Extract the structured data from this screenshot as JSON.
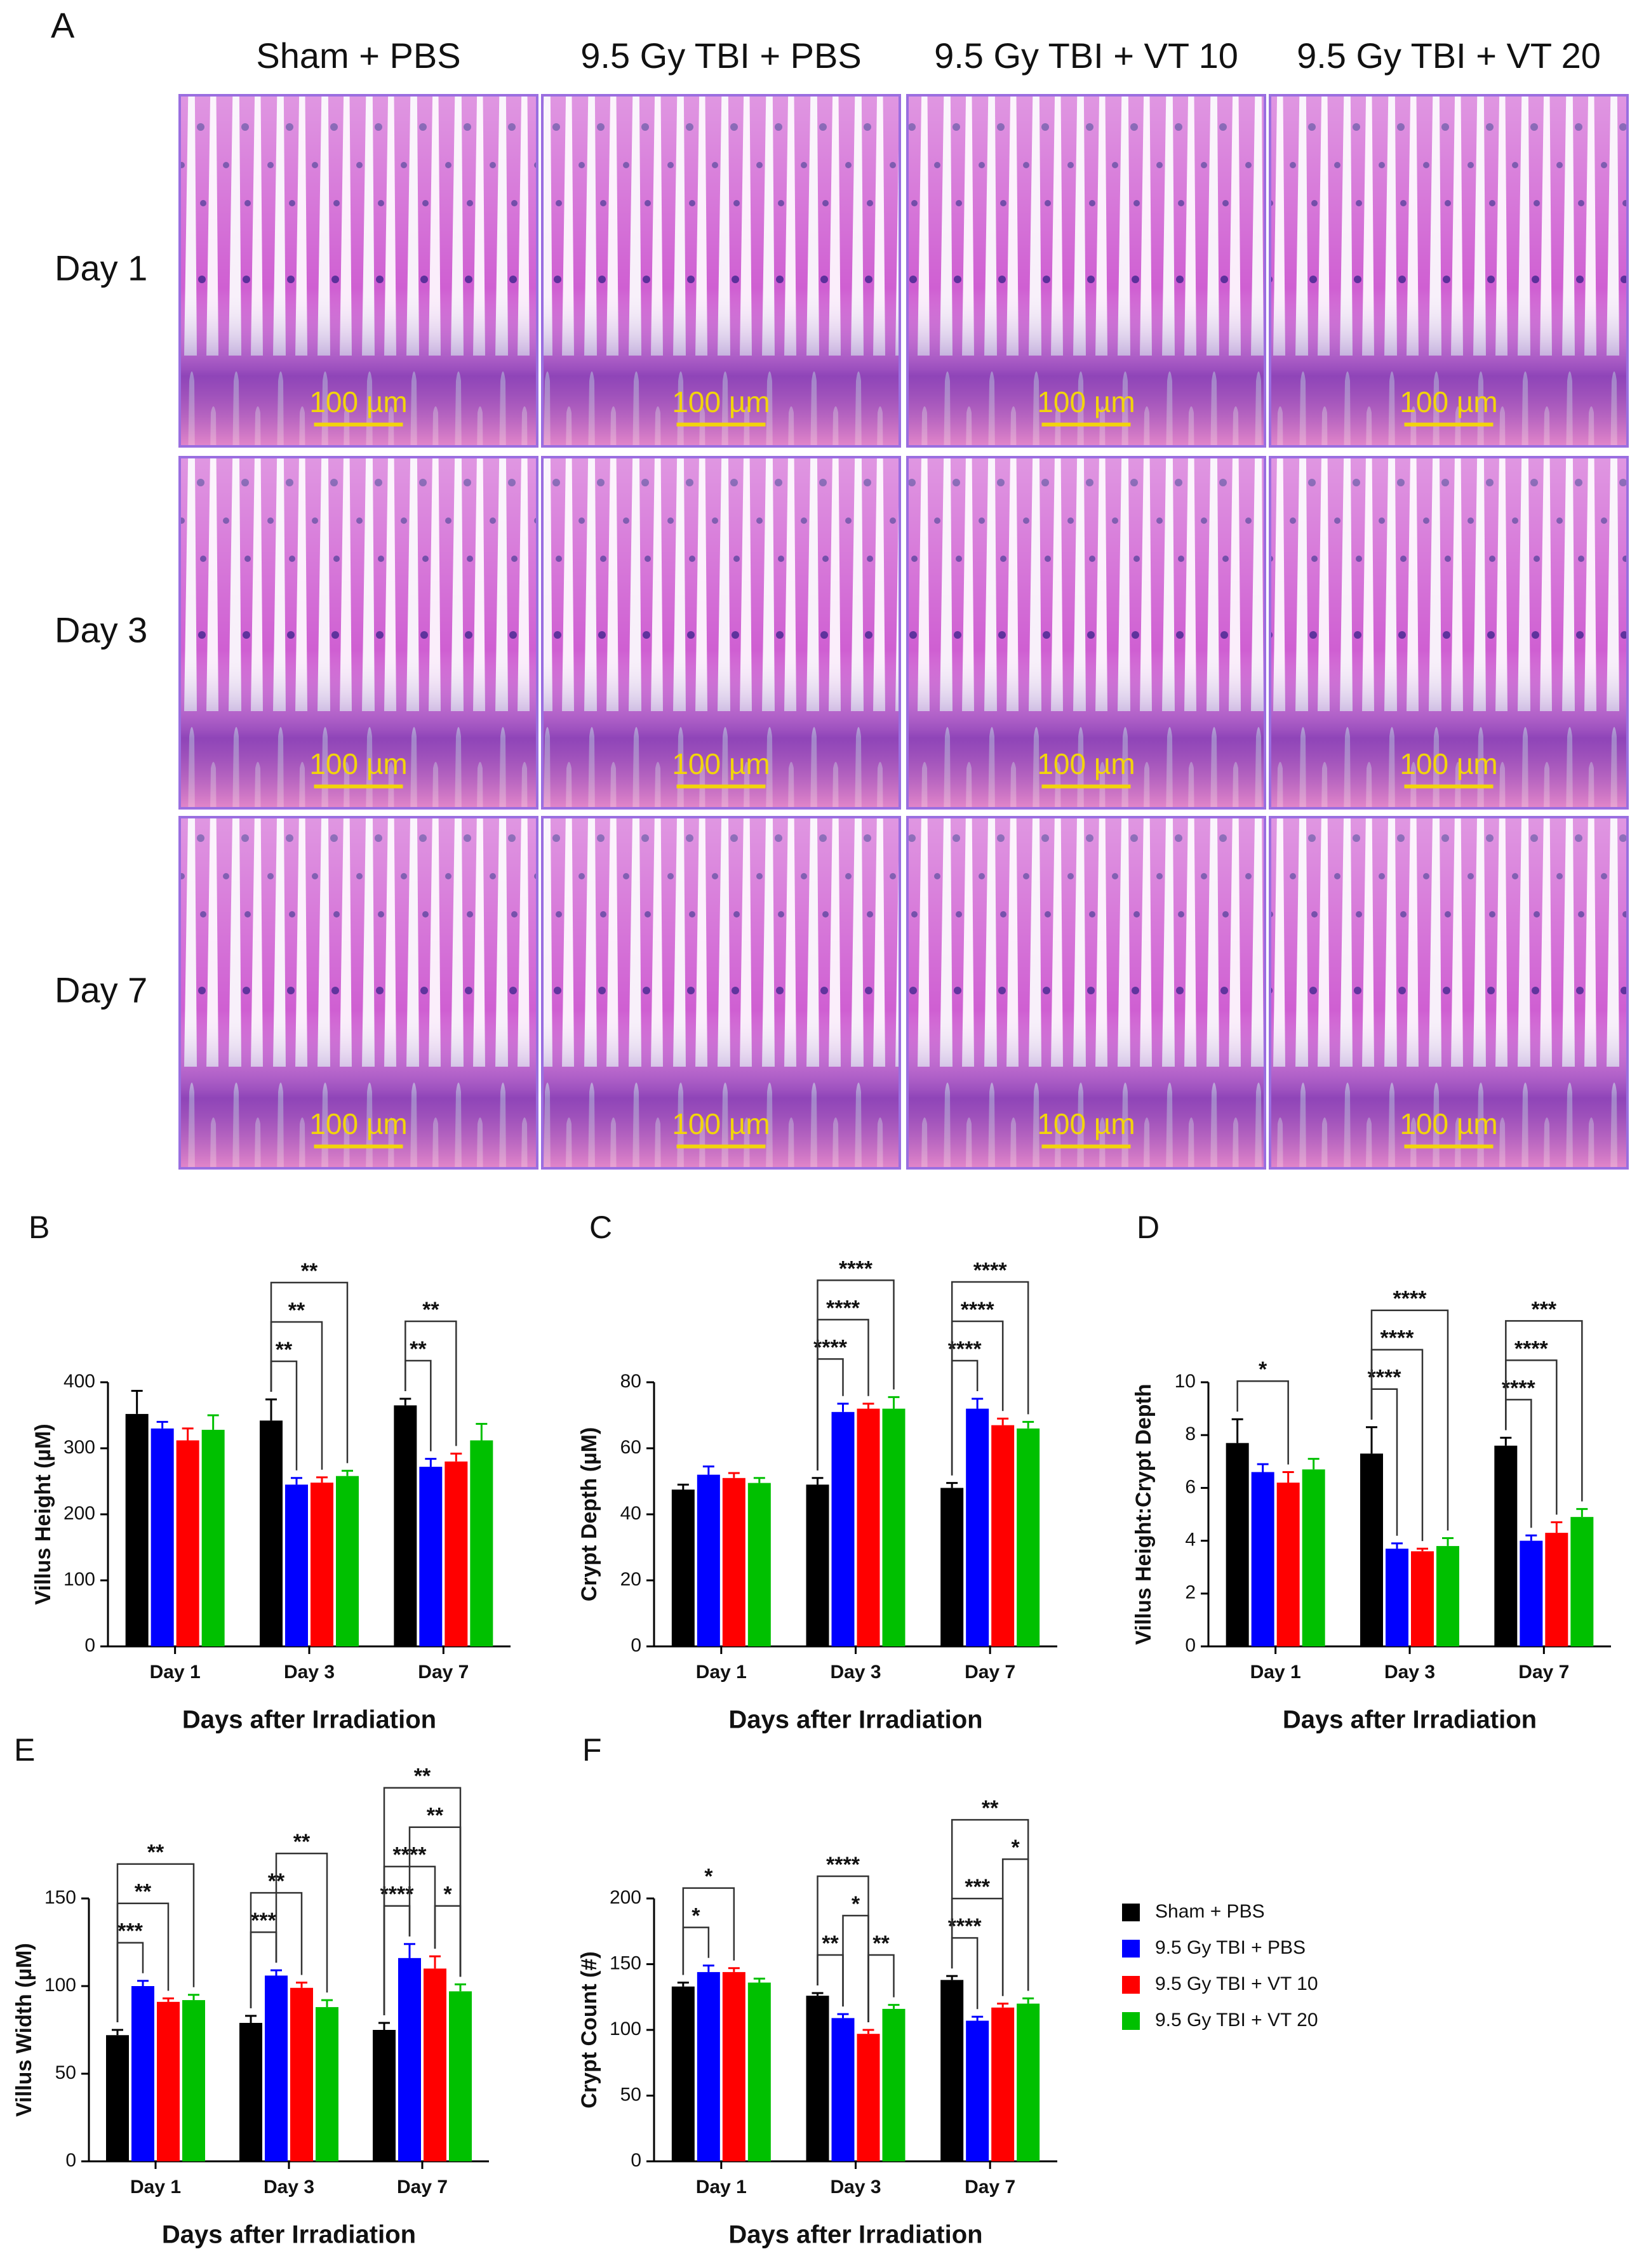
{
  "panel_a": {
    "label": "A",
    "columns": [
      "Sham + PBS",
      "9.5 Gy TBI + PBS",
      "9.5 Gy TBI + VT 10",
      "9.5 Gy TBI + VT 20"
    ],
    "rows": [
      "Day 1",
      "Day 3",
      "Day 7"
    ],
    "scale_bar_labels": [
      "100 µm",
      "100 µm",
      "100 µm",
      "100 µm",
      "100 µm",
      "100 µm",
      "100 µm",
      "100 µm",
      "100 µm",
      "100 µm",
      "100 µm",
      "100 µm"
    ]
  },
  "chart_data": [
    {
      "type": "bar",
      "panel": "B",
      "ylabel": "Villus Height (µM)",
      "xlabel": "Days after Irradiation",
      "categories": [
        "Day 1",
        "Day 3",
        "Day 7"
      ],
      "series": [
        {
          "name": "Sham + PBS",
          "color": "#000000",
          "values": [
            352,
            342,
            365
          ],
          "errors": [
            35,
            32,
            10
          ]
        },
        {
          "name": "9.5 Gy TBI + PBS",
          "color": "#0000ff",
          "values": [
            330,
            245,
            272
          ],
          "errors": [
            10,
            10,
            12
          ]
        },
        {
          "name": "9.5 Gy TBI + VT 10",
          "color": "#ff0000",
          "values": [
            312,
            248,
            280
          ],
          "errors": [
            18,
            8,
            12
          ]
        },
        {
          "name": "9.5 Gy TBI + VT 20",
          "color": "#00c000",
          "values": [
            328,
            258,
            312
          ],
          "errors": [
            22,
            8,
            25
          ]
        }
      ],
      "ylim": [
        0,
        400
      ],
      "yticks": [
        0,
        100,
        200,
        300,
        400
      ],
      "comparisons": [
        {
          "group": 1,
          "from": 0,
          "to": 1,
          "label": "**"
        },
        {
          "group": 1,
          "from": 0,
          "to": 2,
          "label": "**"
        },
        {
          "group": 1,
          "from": 0,
          "to": 3,
          "label": "**"
        },
        {
          "group": 2,
          "from": 0,
          "to": 1,
          "label": "**"
        },
        {
          "group": 2,
          "from": 0,
          "to": 2,
          "label": "**"
        }
      ]
    },
    {
      "type": "bar",
      "panel": "C",
      "ylabel": "Crypt Depth (µM)",
      "xlabel": "Days after Irradiation",
      "categories": [
        "Day 1",
        "Day 3",
        "Day 7"
      ],
      "series": [
        {
          "name": "Sham + PBS",
          "color": "#000000",
          "values": [
            47.5,
            49,
            48
          ],
          "errors": [
            1.5,
            2,
            1.5
          ]
        },
        {
          "name": "9.5 Gy TBI + PBS",
          "color": "#0000ff",
          "values": [
            52,
            71,
            72
          ],
          "errors": [
            2.5,
            2.5,
            3
          ]
        },
        {
          "name": "9.5 Gy TBI + VT 10",
          "color": "#ff0000",
          "values": [
            51,
            72,
            67
          ],
          "errors": [
            1.5,
            1.5,
            2
          ]
        },
        {
          "name": "9.5 Gy TBI + VT 20",
          "color": "#00c000",
          "values": [
            49.5,
            72,
            66
          ],
          "errors": [
            1.5,
            3.5,
            2
          ]
        }
      ],
      "ylim": [
        0,
        80
      ],
      "yticks": [
        0,
        20,
        40,
        60,
        80
      ],
      "comparisons": [
        {
          "group": 1,
          "from": 0,
          "to": 1,
          "label": "****"
        },
        {
          "group": 1,
          "from": 0,
          "to": 2,
          "label": "****"
        },
        {
          "group": 1,
          "from": 0,
          "to": 3,
          "label": "****"
        },
        {
          "group": 2,
          "from": 0,
          "to": 1,
          "label": "****"
        },
        {
          "group": 2,
          "from": 0,
          "to": 2,
          "label": "****"
        },
        {
          "group": 2,
          "from": 0,
          "to": 3,
          "label": "****"
        }
      ]
    },
    {
      "type": "bar",
      "panel": "D",
      "ylabel": "Villus Height:Crypt Depth",
      "xlabel": "Days after Irradiation",
      "categories": [
        "Day 1",
        "Day 3",
        "Day 7"
      ],
      "series": [
        {
          "name": "Sham + PBS",
          "color": "#000000",
          "values": [
            7.7,
            7.3,
            7.6
          ],
          "errors": [
            0.9,
            1.0,
            0.3
          ]
        },
        {
          "name": "9.5 Gy TBI + PBS",
          "color": "#0000ff",
          "values": [
            6.6,
            3.7,
            4.0
          ],
          "errors": [
            0.3,
            0.2,
            0.2
          ]
        },
        {
          "name": "9.5 Gy TBI + VT 10",
          "color": "#ff0000",
          "values": [
            6.2,
            3.6,
            4.3
          ],
          "errors": [
            0.4,
            0.1,
            0.4
          ]
        },
        {
          "name": "9.5 Gy TBI + VT 20",
          "color": "#00c000",
          "values": [
            6.7,
            3.8,
            4.9
          ],
          "errors": [
            0.4,
            0.3,
            0.3
          ]
        }
      ],
      "ylim": [
        0,
        10
      ],
      "yticks": [
        0,
        2,
        4,
        6,
        8,
        10
      ],
      "comparisons": [
        {
          "group": 0,
          "from": 0,
          "to": 2,
          "label": "*"
        },
        {
          "group": 1,
          "from": 0,
          "to": 1,
          "label": "****"
        },
        {
          "group": 1,
          "from": 0,
          "to": 2,
          "label": "****"
        },
        {
          "group": 1,
          "from": 0,
          "to": 3,
          "label": "****"
        },
        {
          "group": 2,
          "from": 0,
          "to": 1,
          "label": "****"
        },
        {
          "group": 2,
          "from": 0,
          "to": 2,
          "label": "****"
        },
        {
          "group": 2,
          "from": 0,
          "to": 3,
          "label": "***"
        }
      ]
    },
    {
      "type": "bar",
      "panel": "E",
      "ylabel": "Villus Width (µM)",
      "xlabel": "Days after Irradiation",
      "categories": [
        "Day 1",
        "Day 3",
        "Day 7"
      ],
      "series": [
        {
          "name": "Sham + PBS",
          "color": "#000000",
          "values": [
            72,
            79,
            75
          ],
          "errors": [
            3,
            4,
            4
          ]
        },
        {
          "name": "9.5 Gy TBI + PBS",
          "color": "#0000ff",
          "values": [
            100,
            106,
            116
          ],
          "errors": [
            3,
            3,
            8
          ]
        },
        {
          "name": "9.5 Gy TBI + VT 10",
          "color": "#ff0000",
          "values": [
            91,
            99,
            110
          ],
          "errors": [
            2,
            3,
            7
          ]
        },
        {
          "name": "9.5 Gy TBI + VT 20",
          "color": "#00c000",
          "values": [
            92,
            88,
            97
          ],
          "errors": [
            3,
            4,
            4
          ]
        }
      ],
      "ylim": [
        0,
        150
      ],
      "yticks": [
        0,
        50,
        100,
        150
      ],
      "comparisons": [
        {
          "group": 0,
          "from": 0,
          "to": 1,
          "label": "***"
        },
        {
          "group": 0,
          "from": 0,
          "to": 2,
          "label": "**"
        },
        {
          "group": 0,
          "from": 0,
          "to": 3,
          "label": "**"
        },
        {
          "group": 1,
          "from": 0,
          "to": 1,
          "label": "***"
        },
        {
          "group": 1,
          "from": 0,
          "to": 2,
          "label": "**"
        },
        {
          "group": 1,
          "from": 1,
          "to": 3,
          "label": "**"
        },
        {
          "group": 2,
          "from": 0,
          "to": 1,
          "label": "****"
        },
        {
          "group": 2,
          "from": 2,
          "to": 3,
          "label": "*"
        },
        {
          "group": 2,
          "from": 0,
          "to": 2,
          "label": "****"
        },
        {
          "group": 2,
          "from": 1,
          "to": 3,
          "label": "**"
        },
        {
          "group": 2,
          "from": 0,
          "to": 3,
          "label": "**"
        }
      ]
    },
    {
      "type": "bar",
      "panel": "F",
      "ylabel": "Crypt Count (#)",
      "xlabel": "Days after Irradiation",
      "categories": [
        "Day 1",
        "Day 3",
        "Day 7"
      ],
      "series": [
        {
          "name": "Sham + PBS",
          "color": "#000000",
          "values": [
            133,
            126,
            138
          ],
          "errors": [
            3,
            2,
            3
          ]
        },
        {
          "name": "9.5 Gy TBI + PBS",
          "color": "#0000ff",
          "values": [
            144,
            109,
            107
          ],
          "errors": [
            5,
            3,
            3
          ]
        },
        {
          "name": "9.5 Gy TBI + VT 10",
          "color": "#ff0000",
          "values": [
            144,
            97,
            117
          ],
          "errors": [
            3,
            3,
            3
          ]
        },
        {
          "name": "9.5 Gy TBI + VT 20",
          "color": "#00c000",
          "values": [
            136,
            116,
            120
          ],
          "errors": [
            3,
            3,
            4
          ]
        }
      ],
      "ylim": [
        0,
        200
      ],
      "yticks": [
        0,
        50,
        100,
        150,
        200
      ],
      "legend": "right",
      "comparisons": [
        {
          "group": 0,
          "from": 0,
          "to": 1,
          "label": "*"
        },
        {
          "group": 0,
          "from": 0,
          "to": 2,
          "label": "*"
        },
        {
          "group": 1,
          "from": 0,
          "to": 1,
          "label": "**"
        },
        {
          "group": 1,
          "from": 2,
          "to": 3,
          "label": "**"
        },
        {
          "group": 1,
          "from": 1,
          "to": 2,
          "label": "*"
        },
        {
          "group": 1,
          "from": 0,
          "to": 2,
          "label": "****"
        },
        {
          "group": 2,
          "from": 0,
          "to": 1,
          "label": "****"
        },
        {
          "group": 2,
          "from": 0,
          "to": 2,
          "label": "***"
        },
        {
          "group": 2,
          "from": 2,
          "to": 3,
          "label": "*"
        },
        {
          "group": 2,
          "from": 0,
          "to": 3,
          "label": "**"
        }
      ]
    }
  ]
}
